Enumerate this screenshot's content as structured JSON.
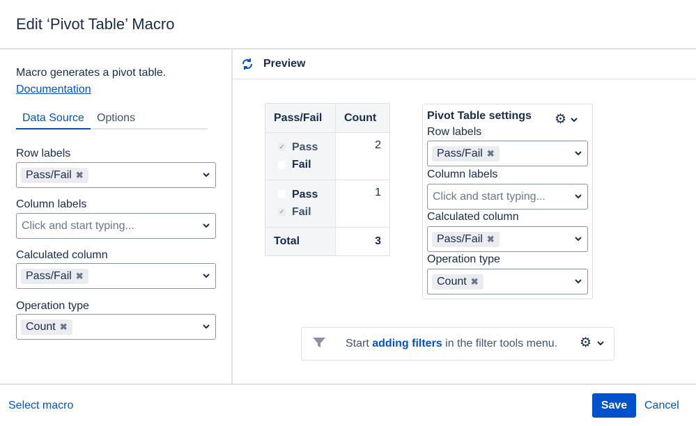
{
  "title": "Edit ‘Pivot Table’ Macro",
  "left": {
    "description": "Macro generates a pivot table.",
    "doc_link": "Documentation",
    "tabs": [
      {
        "label": "Data Source",
        "active": true
      },
      {
        "label": "Options",
        "active": false
      }
    ],
    "fields": [
      {
        "label": "Row labels",
        "value": "Pass/Fail",
        "placeholder": ""
      },
      {
        "label": "Column labels",
        "value": "",
        "placeholder": "Click and start typing..."
      },
      {
        "label": "Calculated column",
        "value": "Pass/Fail",
        "placeholder": ""
      },
      {
        "label": "Operation type",
        "value": "Count",
        "placeholder": ""
      }
    ]
  },
  "preview": {
    "label": "Preview",
    "table": {
      "headers": [
        "Pass/Fail",
        "Count"
      ],
      "rows": [
        {
          "items": [
            {
              "label": "Pass",
              "checked": true
            },
            {
              "label": "Fail",
              "checked": false
            }
          ],
          "count": "2"
        },
        {
          "items": [
            {
              "label": "Pass",
              "checked": false
            },
            {
              "label": "Fail",
              "checked": true
            }
          ],
          "count": "1"
        }
      ],
      "total_label": "Total",
      "total": "3"
    },
    "settings": {
      "title": "Pivot Table settings",
      "fields": [
        {
          "label": "Row labels",
          "value": "Pass/Fail",
          "placeholder": ""
        },
        {
          "label": "Column labels",
          "value": "",
          "placeholder": "Click and start typing..."
        },
        {
          "label": "Calculated column",
          "value": "Pass/Fail",
          "placeholder": ""
        },
        {
          "label": "Operation type",
          "value": "Count",
          "placeholder": ""
        }
      ]
    },
    "filter": {
      "pre": "Start",
      "link": "adding filters",
      "post": "in the filter tools menu."
    }
  },
  "footer": {
    "select_macro": "Select macro",
    "save": "Save",
    "cancel": "Cancel"
  },
  "colors": {
    "accent": "#0052cc",
    "text": "#172b4d"
  }
}
